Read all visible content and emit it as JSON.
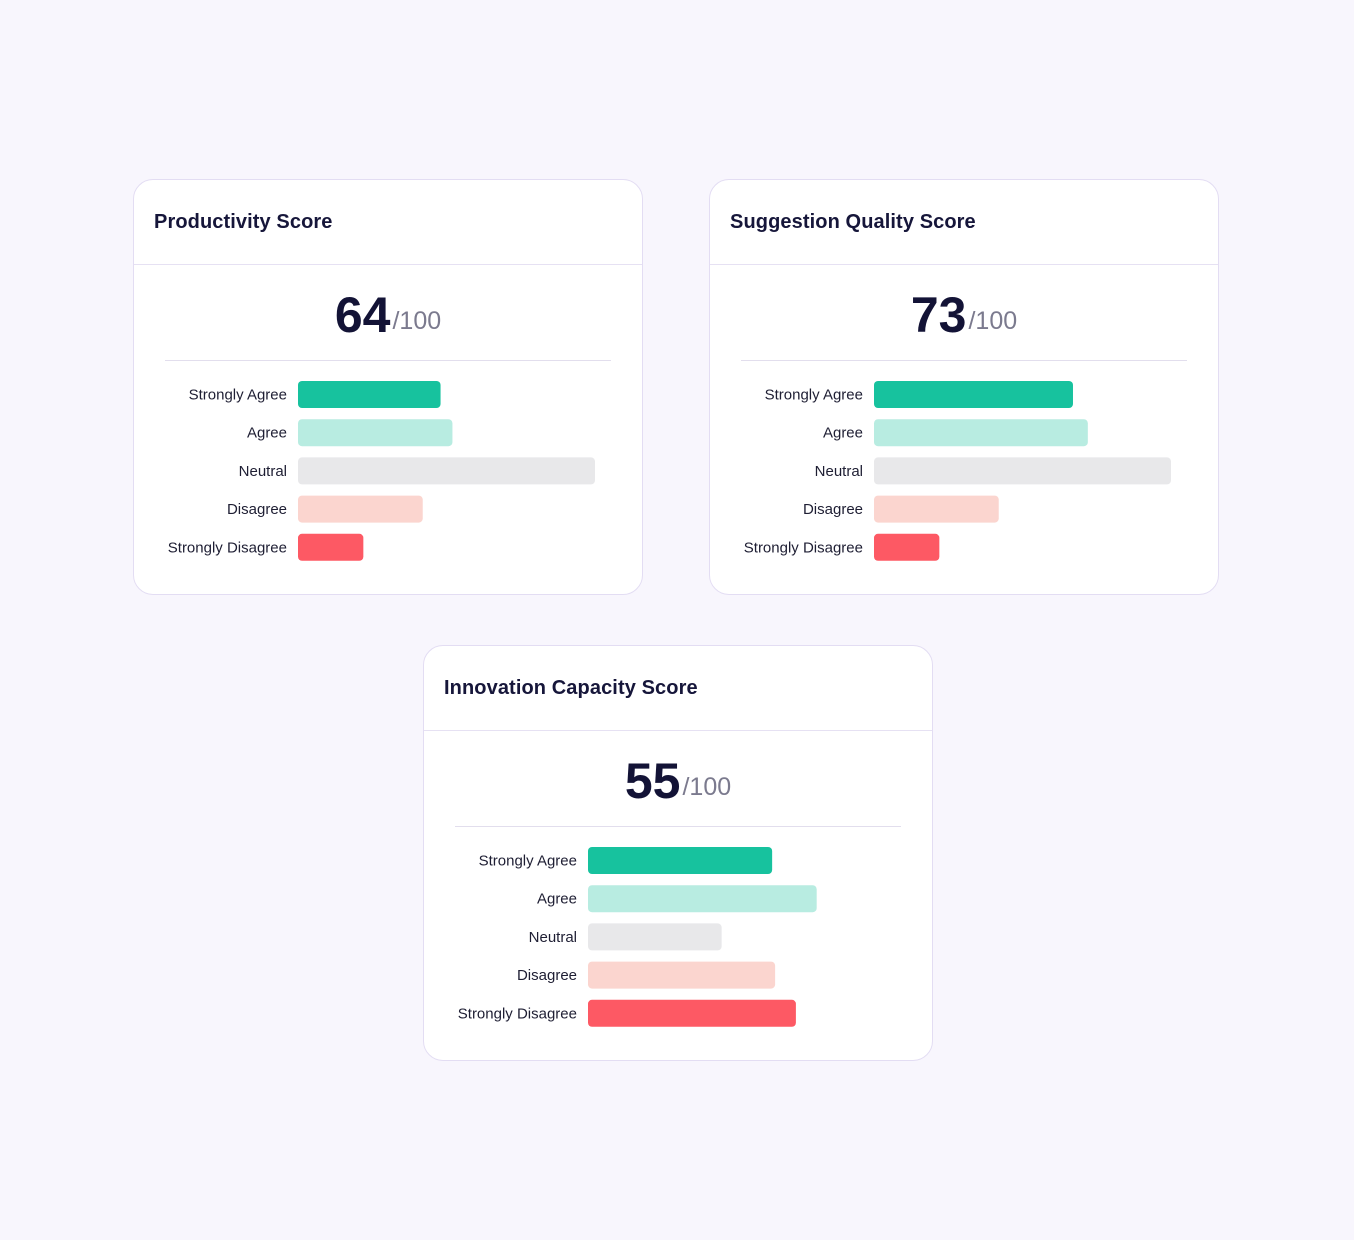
{
  "cards": [
    {
      "title": "Productivity Score",
      "score": "64",
      "max": "/100",
      "chart_data": {
        "type": "bar",
        "orientation": "horizontal",
        "categories": [
          "Strongly Agree",
          "Agree",
          "Neutral",
          "Disagree",
          "Strongly Disagree"
        ],
        "values": [
          48,
          52,
          100,
          42,
          22
        ],
        "xlim": [
          0,
          100
        ]
      }
    },
    {
      "title": "Suggestion Quality Score",
      "score": "73",
      "max": "/100",
      "chart_data": {
        "type": "bar",
        "orientation": "horizontal",
        "categories": [
          "Strongly Agree",
          "Agree",
          "Neutral",
          "Disagree",
          "Strongly Disagree"
        ],
        "values": [
          67,
          72,
          100,
          42,
          22
        ],
        "xlim": [
          0,
          100
        ]
      }
    },
    {
      "title": "Innovation Capacity Score",
      "score": "55",
      "max": "/100",
      "chart_data": {
        "type": "bar",
        "orientation": "horizontal",
        "categories": [
          "Strongly Agree",
          "Agree",
          "Neutral",
          "Disagree",
          "Strongly Disagree"
        ],
        "values": [
          62,
          77,
          45,
          63,
          70
        ],
        "xlim": [
          0,
          100
        ]
      }
    }
  ],
  "colors": [
    "#17c29e",
    "#b8ece1",
    "#e8e8ea",
    "#fbd5cf",
    "#fd5964"
  ]
}
